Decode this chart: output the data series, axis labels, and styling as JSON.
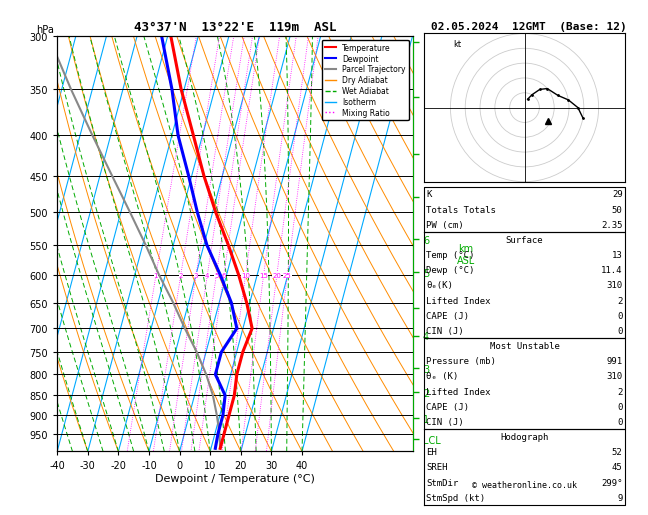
{
  "title_left": "43°37'N  13°22'E  119m  ASL",
  "xlabel": "Dewpoint / Temperature (°C)",
  "date_str": "02.05.2024  12GMT  (Base: 12)",
  "pressure_levels": [
    300,
    350,
    400,
    450,
    500,
    550,
    600,
    650,
    700,
    750,
    800,
    850,
    900,
    950
  ],
  "temp_min": -40,
  "temp_max": 40,
  "colors": {
    "temperature": "#ff0000",
    "dewpoint": "#0000ff",
    "parcel": "#888888",
    "dry_adiabat": "#ff8c00",
    "wet_adiabat": "#00aa00",
    "isotherm": "#00aaff",
    "mixing_ratio": "#ff00ff",
    "background": "#ffffff",
    "grid": "#000000"
  },
  "temperature_profile": {
    "pressure": [
      300,
      350,
      400,
      450,
      500,
      550,
      600,
      650,
      700,
      750,
      800,
      850,
      900,
      950,
      991
    ],
    "temp": [
      -39,
      -31,
      -23,
      -16,
      -9,
      -2,
      4,
      9,
      13,
      12,
      12,
      13,
      13,
      13,
      13
    ]
  },
  "dewpoint_profile": {
    "pressure": [
      300,
      350,
      400,
      450,
      500,
      550,
      600,
      650,
      700,
      750,
      800,
      850,
      900,
      950,
      991
    ],
    "temp": [
      -42,
      -34,
      -28,
      -21,
      -15,
      -9,
      -2,
      4,
      8,
      5,
      5,
      10,
      11,
      11,
      11.4
    ]
  },
  "parcel_profile": {
    "pressure": [
      991,
      950,
      900,
      850,
      800,
      750,
      700,
      650,
      600,
      550,
      500,
      450,
      400,
      350,
      300
    ],
    "temp": [
      13,
      11.5,
      9,
      6,
      2,
      -3,
      -9,
      -15,
      -22,
      -29,
      -37,
      -46,
      -56,
      -67,
      -79
    ]
  },
  "mixing_ratios": [
    1,
    2,
    3,
    4,
    5,
    6,
    10,
    15,
    20,
    25
  ],
  "stats": {
    "K": 29,
    "Totals_Totals": 50,
    "PW_cm": 2.35,
    "Surface_Temp": 13,
    "Surface_Dewp": 11.4,
    "Surface_ThetaE": 310,
    "Surface_LiftedIndex": 2,
    "Surface_CAPE": 0,
    "Surface_CIN": 0,
    "MU_Pressure": 991,
    "MU_ThetaE": 310,
    "MU_LiftedIndex": 2,
    "MU_CAPE": 0,
    "MU_CIN": 0,
    "Hodo_EH": 52,
    "Hodo_SREH": 45,
    "Hodo_StmDir": 299,
    "Hodo_StmSpd": 9
  }
}
